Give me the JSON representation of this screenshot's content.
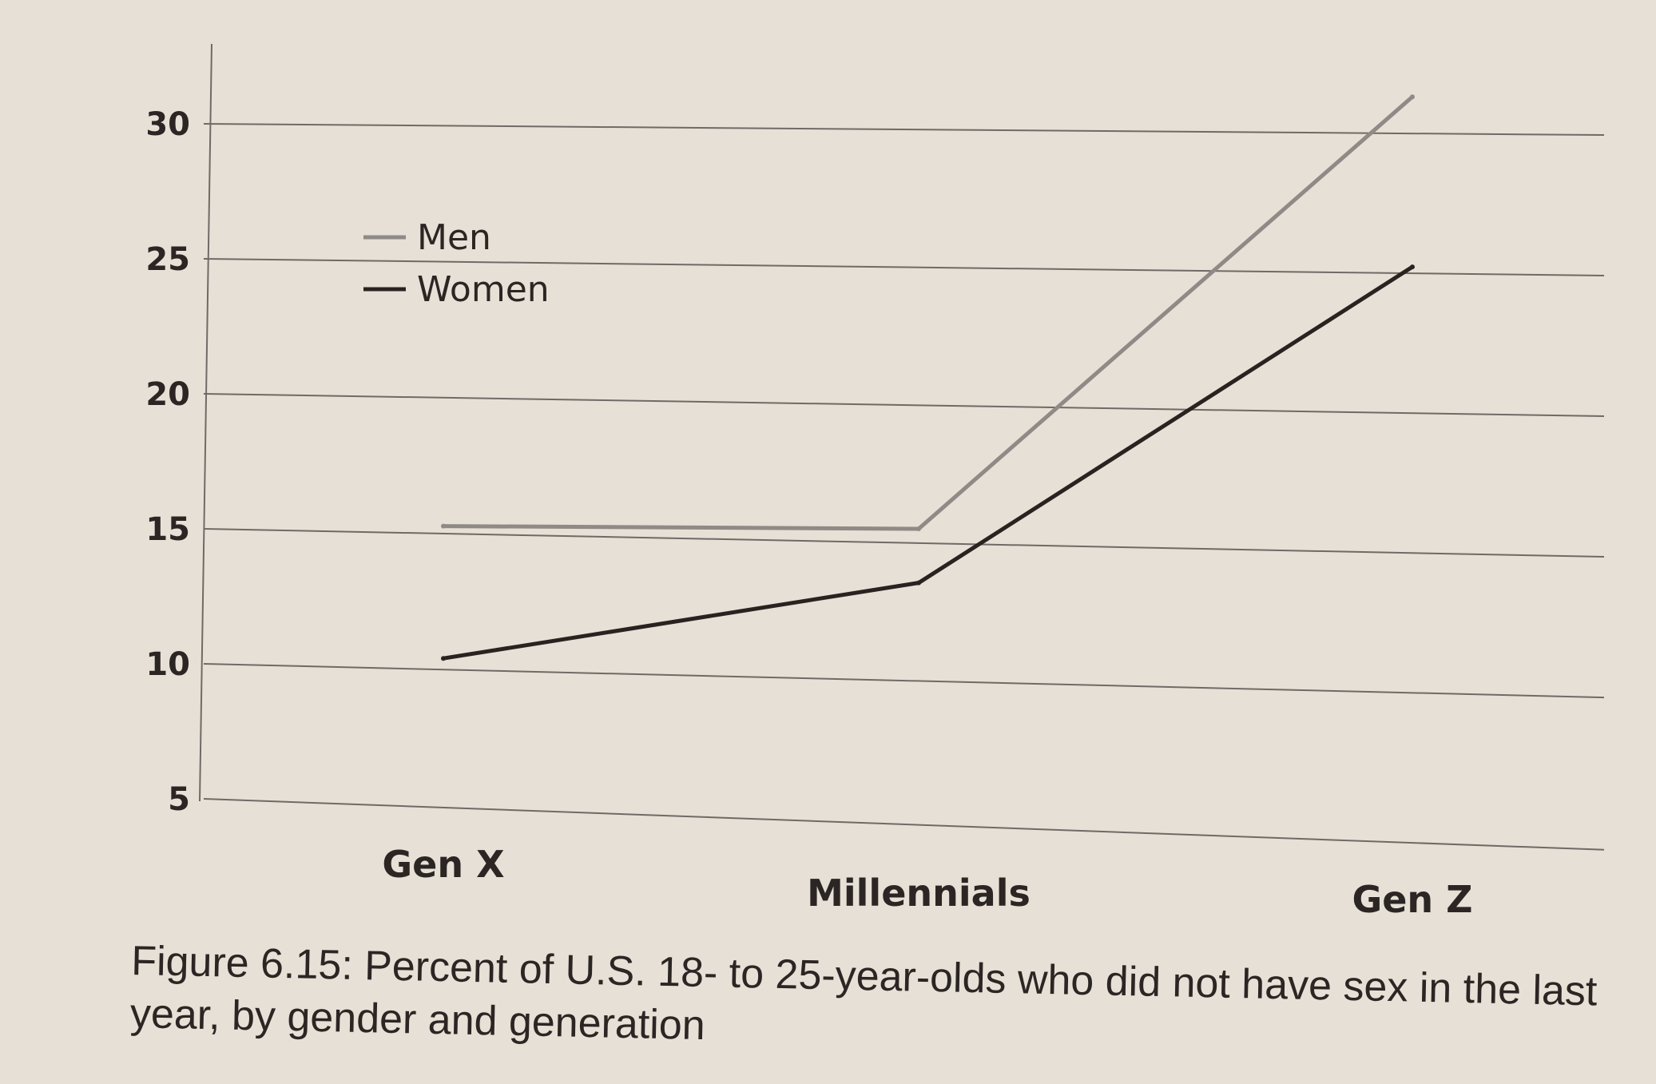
{
  "chart_data": {
    "type": "line",
    "categories": [
      "Gen X",
      "Millennials",
      "Gen Z"
    ],
    "series": [
      {
        "name": "Men",
        "values": [
          15.1,
          15.0,
          31.0
        ],
        "color": "#8f8a86"
      },
      {
        "name": "Women",
        "values": [
          10.2,
          13.0,
          24.7
        ],
        "color": "#2a2220"
      }
    ],
    "yticks": [
      5,
      10,
      15,
      20,
      25,
      30
    ],
    "ylim": [
      5,
      31
    ],
    "grid": true,
    "legend": "top-left"
  },
  "caption": "Figure 6.15: Percent of U.S. 18- to 25-year-olds who did not have sex in the last year, by gender and generation"
}
